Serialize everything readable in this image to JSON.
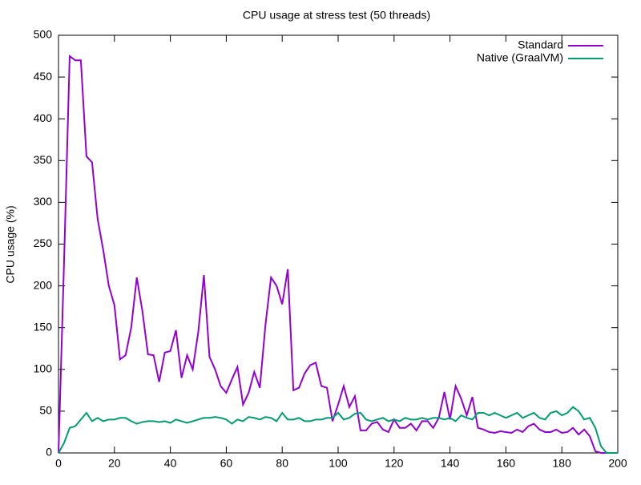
{
  "chart_data": {
    "type": "line",
    "title": "CPU usage at stress test (50 threads)",
    "y_label": "CPU usage (%)",
    "x": [
      0,
      2,
      4,
      6,
      8,
      10,
      12,
      14,
      16,
      18,
      20,
      22,
      24,
      26,
      28,
      30,
      32,
      34,
      36,
      38,
      40,
      42,
      44,
      46,
      48,
      50,
      52,
      54,
      56,
      58,
      60,
      62,
      64,
      66,
      68,
      70,
      72,
      74,
      76,
      78,
      80,
      82,
      84,
      86,
      88,
      90,
      92,
      94,
      96,
      98,
      100,
      102,
      104,
      106,
      108,
      110,
      112,
      114,
      116,
      118,
      120,
      122,
      124,
      126,
      128,
      130,
      132,
      134,
      136,
      138,
      140,
      142,
      144,
      146,
      148,
      150,
      152,
      154,
      156,
      158,
      160,
      162,
      164,
      166,
      168,
      170,
      172,
      174,
      176,
      178,
      180,
      182,
      184,
      186,
      188,
      190,
      192,
      194,
      196,
      198,
      200
    ],
    "series": [
      {
        "name": "Standard",
        "color": "#9400d3",
        "values": [
          0,
          230,
          475,
          470,
          470,
          355,
          348,
          280,
          243,
          200,
          177,
          112,
          117,
          150,
          210,
          170,
          118,
          117,
          85,
          120,
          122,
          147,
          90,
          117,
          100,
          145,
          213,
          115,
          100,
          80,
          72,
          88,
          103,
          58,
          72,
          97,
          78,
          153,
          210,
          200,
          178,
          220,
          75,
          78,
          95,
          105,
          108,
          80,
          78,
          38,
          58,
          80,
          55,
          68,
          27,
          27,
          35,
          37,
          28,
          25,
          40,
          30,
          30,
          35,
          27,
          38,
          38,
          30,
          42,
          73,
          40,
          80,
          65,
          45,
          67,
          30,
          28,
          25,
          24,
          26,
          25,
          24,
          28,
          25,
          32,
          35,
          28,
          25,
          25,
          28,
          24,
          25,
          30,
          22,
          28,
          20,
          2,
          0,
          0,
          0,
          0
        ]
      },
      {
        "name": "Native (GraalVM)",
        "color": "#009e73",
        "values": [
          0,
          12,
          30,
          32,
          40,
          48,
          38,
          42,
          38,
          40,
          40,
          42,
          42,
          38,
          35,
          37,
          38,
          38,
          37,
          38,
          36,
          40,
          38,
          36,
          38,
          40,
          42,
          42,
          43,
          42,
          40,
          35,
          40,
          38,
          43,
          42,
          40,
          43,
          42,
          38,
          48,
          40,
          40,
          42,
          38,
          38,
          40,
          40,
          42,
          42,
          48,
          40,
          42,
          47,
          48,
          40,
          38,
          40,
          42,
          38,
          40,
          38,
          42,
          40,
          40,
          42,
          40,
          42,
          42,
          40,
          42,
          38,
          45,
          42,
          40,
          48,
          48,
          45,
          48,
          45,
          42,
          45,
          48,
          42,
          45,
          48,
          42,
          40,
          48,
          50,
          45,
          48,
          55,
          50,
          40,
          42,
          30,
          8,
          0,
          0,
          0
        ]
      }
    ],
    "xlim": [
      0,
      200
    ],
    "xticks": [
      0,
      20,
      40,
      60,
      80,
      100,
      120,
      140,
      160,
      180,
      200
    ],
    "ylim": [
      0,
      500
    ],
    "yticks": [
      0,
      50,
      100,
      150,
      200,
      250,
      300,
      350,
      400,
      450,
      500
    ],
    "legend": "top-right"
  }
}
